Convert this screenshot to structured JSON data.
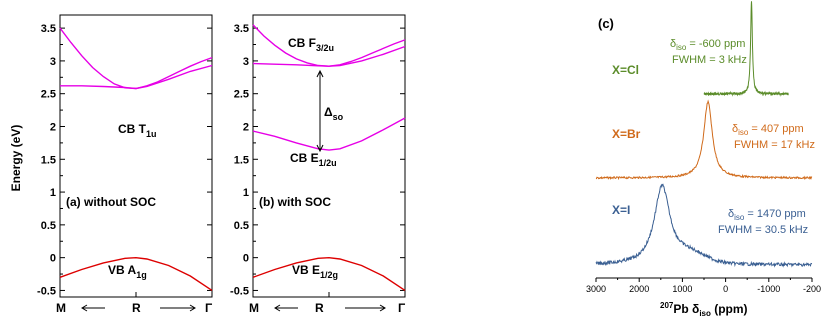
{
  "colors": {
    "cb": "#e600e6",
    "vb": "#dd0000",
    "cl": "#5b8c2a",
    "br": "#d06a1a",
    "i": "#3a5f92"
  },
  "chart_data": [
    {
      "type": "line",
      "panel": "a",
      "ylabel": "Energy (eV)",
      "ylim": [
        -0.6,
        3.7
      ],
      "yticks": [
        "3.5",
        "3",
        "2.5",
        "2",
        "1.5",
        "1",
        "0.5",
        "0",
        "-0.5"
      ],
      "xticks": [
        "M",
        "R",
        "Γ"
      ],
      "label": "(a) without SOC",
      "cb_label": "CB T",
      "cb_sub": "1u",
      "vb_label": "VB A",
      "vb_sub": "1g",
      "series": [
        {
          "x": [
            0,
            0.5,
            1,
            1.5,
            2,
            2.5,
            3,
            3.5,
            4,
            4.5,
            5,
            5.5,
            6,
            6.5,
            7
          ],
          "y": [
            3.5,
            3.28,
            3.08,
            2.9,
            2.76,
            2.65,
            2.59,
            2.58,
            2.62,
            2.68,
            2.76,
            2.84,
            2.92,
            2.99,
            3.05
          ]
        },
        {
          "x": [
            0,
            1,
            2,
            3,
            3.5,
            4,
            5,
            6,
            7
          ],
          "y": [
            2.62,
            2.62,
            2.61,
            2.595,
            2.58,
            2.61,
            2.72,
            2.84,
            2.93
          ]
        },
        {
          "x": [
            0,
            1,
            2,
            3,
            3.5,
            4,
            5,
            6,
            7
          ],
          "y": [
            -0.3,
            -0.18,
            -0.08,
            -0.01,
            0,
            -0.02,
            -0.12,
            -0.28,
            -0.5
          ]
        }
      ]
    },
    {
      "type": "line",
      "panel": "b",
      "ylim": [
        -0.6,
        3.7
      ],
      "yticks": [
        "3.5",
        "3",
        "2.5",
        "2",
        "1.5",
        "1",
        "0.5",
        "0",
        "-0.5"
      ],
      "xticks": [
        "M",
        "R",
        "Γ"
      ],
      "label": "(b) with SOC",
      "cb_top_label": "CB F",
      "cb_top_sub": "3/2u",
      "cb_bot_label": "CB E",
      "cb_bot_sub": "1/2u",
      "delta_label": "Δ",
      "delta_sub": "so",
      "vb_label": "VB E",
      "vb_sub": "1/2g",
      "series": [
        {
          "x": [
            0,
            0.5,
            1,
            1.5,
            2,
            2.5,
            3,
            3.5,
            4,
            4.5,
            5,
            5.5,
            6,
            6.5,
            7
          ],
          "y": [
            3.55,
            3.38,
            3.24,
            3.12,
            3.03,
            2.97,
            2.93,
            2.92,
            2.94,
            2.99,
            3.05,
            3.12,
            3.19,
            3.26,
            3.32
          ]
        },
        {
          "x": [
            0,
            1,
            2,
            3,
            3.5,
            4,
            5,
            6,
            7
          ],
          "y": [
            2.96,
            2.95,
            2.94,
            2.925,
            2.92,
            2.93,
            3.0,
            3.1,
            3.22
          ]
        },
        {
          "x": [
            0,
            1,
            2,
            3,
            3.5,
            4,
            5,
            6,
            7
          ],
          "y": [
            1.93,
            1.85,
            1.75,
            1.66,
            1.64,
            1.66,
            1.78,
            1.95,
            2.13
          ]
        },
        {
          "x": [
            0,
            1,
            2,
            3,
            3.5,
            4,
            5,
            6,
            7
          ],
          "y": [
            -0.3,
            -0.18,
            -0.08,
            -0.01,
            0,
            -0.02,
            -0.12,
            -0.28,
            -0.5
          ]
        }
      ]
    },
    {
      "type": "line",
      "panel": "c",
      "label": "(c)",
      "xlabel_pre": "207",
      "xlabel_main": "Pb δ",
      "xlabel_sub": "iso",
      "xlabel_post": " (ppm)",
      "xlim": [
        3000,
        -2000
      ],
      "xticks": [
        "3000",
        "2000",
        "1000",
        "0",
        "-1000",
        "-200"
      ],
      "spectra": [
        {
          "name": "X=Cl",
          "delta_pre": "δ",
          "delta_sub": "iso",
          "delta_value": " = -600 ppm",
          "fwhm": "FWHM = 3 kHz",
          "peak_ppm": -600,
          "peak_width_ppm": 25,
          "x_range": [
            500,
            -1450
          ],
          "amplitude": 1
        },
        {
          "name": "X=Br",
          "delta_pre": "δ",
          "delta_sub": "iso",
          "delta_value": " = 407 ppm",
          "fwhm": "FWHM = 17 kHz",
          "peak_ppm": 407,
          "peak_width_ppm": 120,
          "x_range": [
            3000,
            -2000
          ],
          "amplitude": 1
        },
        {
          "name": "X=I",
          "delta_pre": "δ",
          "delta_sub": "iso",
          "delta_value": " = 1470 ppm",
          "fwhm": "FWHM = 30.5 kHz",
          "peak_ppm": 1470,
          "peak_width_ppm": 220,
          "x_range": [
            3000,
            -2000
          ],
          "amplitude": 1
        }
      ]
    }
  ]
}
